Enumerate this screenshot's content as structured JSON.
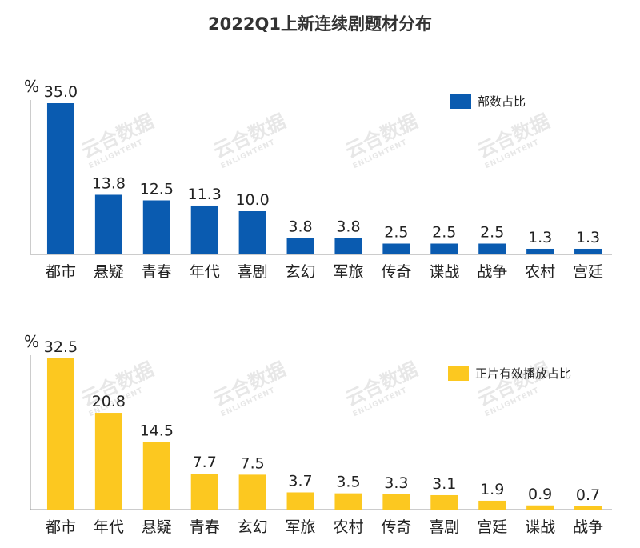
{
  "title": "2022Q1上新连续剧题材分布",
  "watermark": {
    "cn": "云合数据",
    "en": "ENLIGHTENT"
  },
  "chart_data": [
    {
      "type": "bar",
      "ylabel": "%",
      "legend": "部数占比",
      "legend_position": "top-right",
      "color": "#0a5bb0",
      "categories": [
        "都市",
        "悬疑",
        "青春",
        "年代",
        "喜剧",
        "玄幻",
        "军旅",
        "传奇",
        "谍战",
        "战争",
        "农村",
        "宫廷"
      ],
      "values": [
        35.0,
        13.8,
        12.5,
        11.3,
        10.0,
        3.8,
        3.8,
        2.5,
        2.5,
        2.5,
        1.3,
        1.3
      ],
      "value_labels": [
        "35.0",
        "13.8",
        "12.5",
        "11.3",
        "10.0",
        "3.8",
        "3.8",
        "2.5",
        "2.5",
        "2.5",
        "1.3",
        "1.3"
      ],
      "ylim": [
        0,
        35
      ],
      "grid": false
    },
    {
      "type": "bar",
      "ylabel": "%",
      "legend": "正片有效播放占比",
      "legend_position": "top-right",
      "color": "#fcc820",
      "categories": [
        "都市",
        "年代",
        "悬疑",
        "青春",
        "玄幻",
        "军旅",
        "农村",
        "传奇",
        "喜剧",
        "宫廷",
        "谍战",
        "战争"
      ],
      "values": [
        32.5,
        20.8,
        14.5,
        7.7,
        7.5,
        3.7,
        3.5,
        3.3,
        3.1,
        1.9,
        0.9,
        0.7
      ],
      "value_labels": [
        "32.5",
        "20.8",
        "14.5",
        "7.7",
        "7.5",
        "3.7",
        "3.5",
        "3.3",
        "3.1",
        "1.9",
        "0.9",
        "0.7"
      ],
      "ylim": [
        0,
        32.5
      ],
      "grid": false
    }
  ]
}
